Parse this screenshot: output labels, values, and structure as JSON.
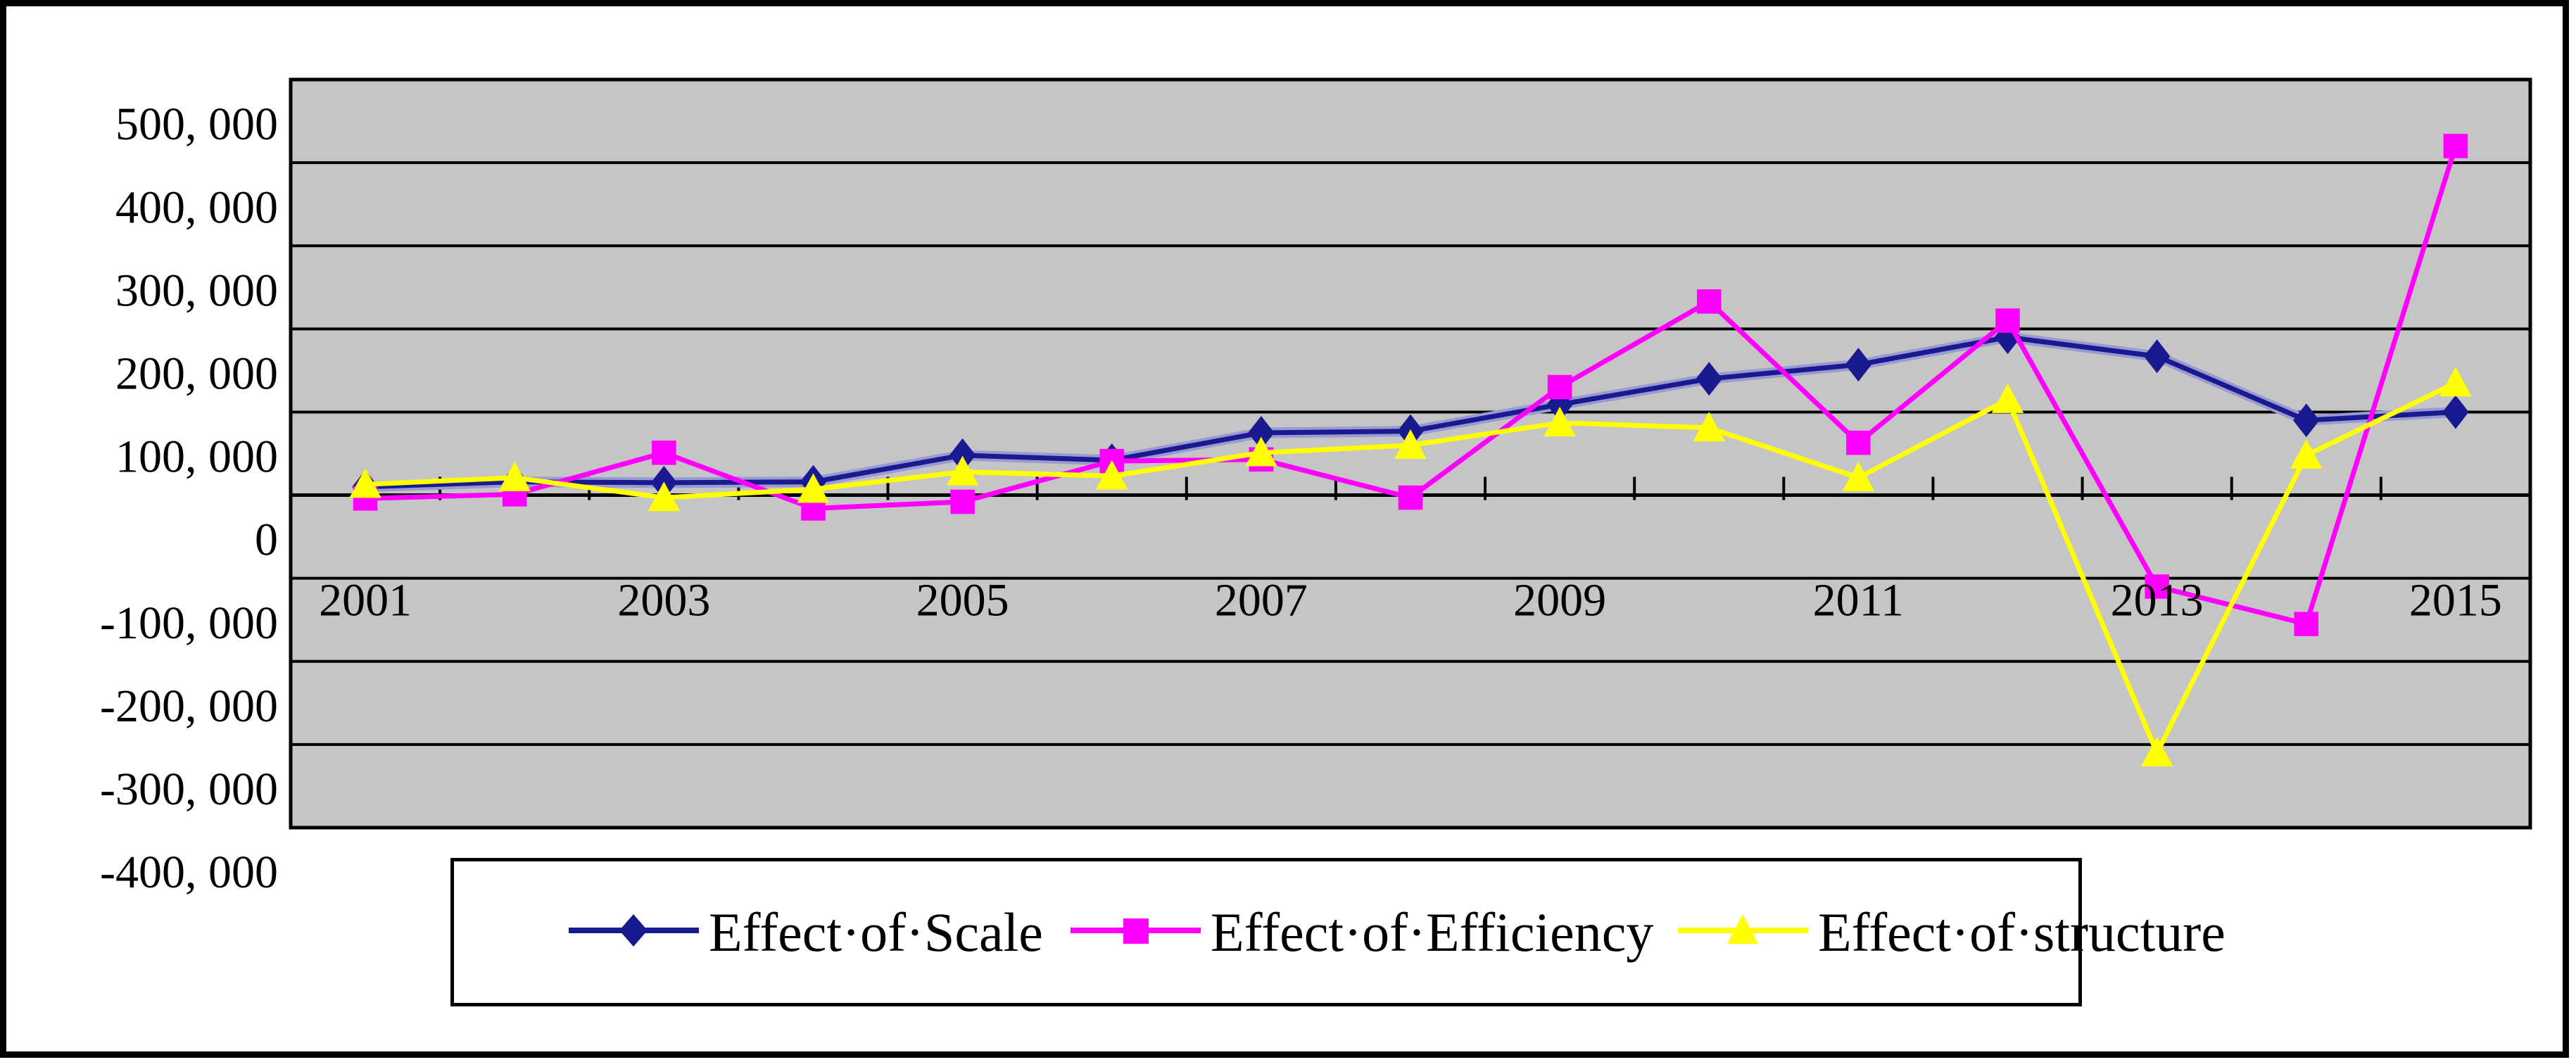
{
  "page": {
    "background_color": "#ffffff",
    "frame_color": "#000000"
  },
  "chart_data": {
    "type": "line",
    "title": "",
    "x_categories": [
      "2001",
      "2002",
      "2003",
      "2004",
      "2005",
      "2006",
      "2007",
      "2008",
      "2009",
      "2010",
      "2011",
      "2012",
      "2013",
      "2014",
      "2015"
    ],
    "x_tick_labels": [
      "2001",
      "2003",
      "2005",
      "2007",
      "2009",
      "2011",
      "2013",
      "2015"
    ],
    "y_axis": {
      "min": -400000,
      "max": 500000,
      "step": 100000,
      "tick_labels": [
        "500, 000",
        "400, 000",
        "300, 000",
        "200, 000",
        "100, 000",
        "0",
        "-100, 000",
        "-200, 000",
        "-300, 000",
        "-400, 000"
      ]
    },
    "plot": {
      "background": "#c5c5c5",
      "grid_color": "#000000",
      "grid_on": true
    },
    "legend_position": "bottom",
    "series": [
      {
        "name": "Effect of Scale",
        "legend_label": "Effect·of·Scale",
        "color": "#1a1a90",
        "halo": "#9a9ad2",
        "marker": "diamond",
        "values": [
          10000,
          16000,
          15000,
          16000,
          48000,
          42000,
          75000,
          77000,
          109000,
          140000,
          157000,
          190000,
          167000,
          90000,
          100000
        ]
      },
      {
        "name": "Effect of Efficiency",
        "legend_label": "Effect·of·Efficiency",
        "color": "#ff00ff",
        "halo": null,
        "marker": "square",
        "values": [
          -4000,
          1000,
          51000,
          -16000,
          -8000,
          41000,
          43000,
          -3000,
          130000,
          233000,
          63000,
          210000,
          -110000,
          -155000,
          420000
        ]
      },
      {
        "name": "Effect of structure",
        "legend_label": "Effect·of·structure",
        "color": "#ffff00",
        "halo": null,
        "marker": "triangle",
        "values": [
          13000,
          21000,
          -3000,
          7000,
          28000,
          23000,
          51000,
          60000,
          87000,
          81000,
          21000,
          115000,
          -310000,
          48000,
          135000
        ]
      }
    ]
  }
}
